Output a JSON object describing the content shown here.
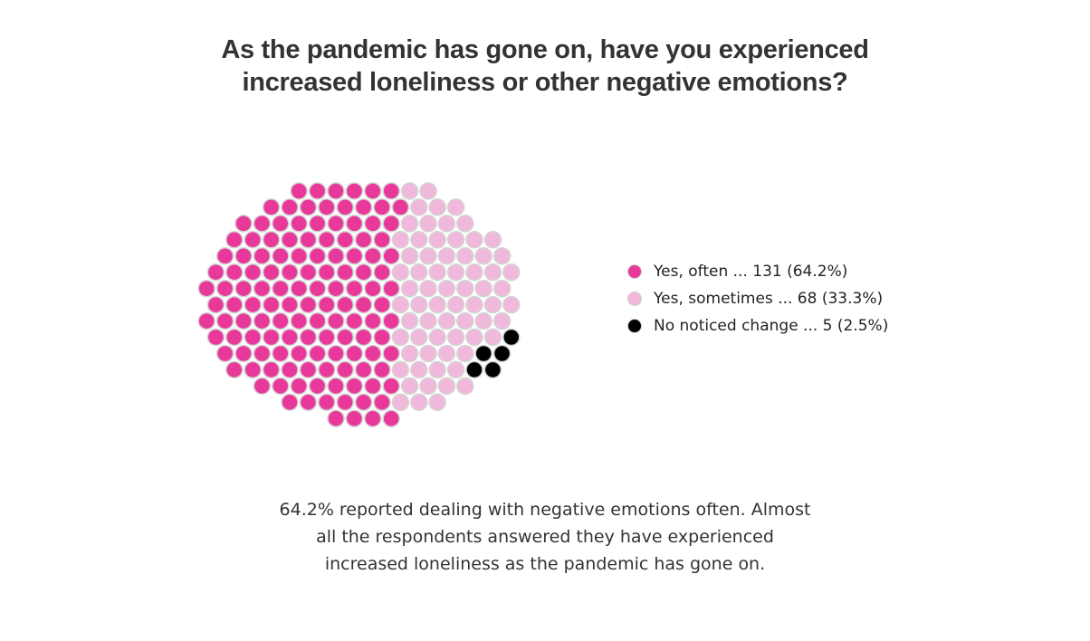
{
  "title": "As the pandemic has gone on, have you experienced increased loneliness or other negative emotions?",
  "caption": "64.2% reported dealing with negative emotions often. Almost all the respondents answered they have experienced increased loneliness as the pandemic has gone on.",
  "chart_data": {
    "type": "dot-cluster",
    "total": 204,
    "series": [
      {
        "name": "Yes, often",
        "value": 131,
        "percent": 64.2,
        "color": "#e8399a",
        "label": "Yes, often ... 131 (64.2%)"
      },
      {
        "name": "Yes, sometimes",
        "value": 68,
        "percent": 33.3,
        "color": "#f0b9dc",
        "label": "Yes, sometimes ... 68 (33.3%)"
      },
      {
        "name": "No noticed change",
        "value": 5,
        "percent": 2.5,
        "color": "#000000",
        "label": "No noticed change ... 5 (2.5%)"
      }
    ],
    "legend_position": "right",
    "grid": false
  }
}
